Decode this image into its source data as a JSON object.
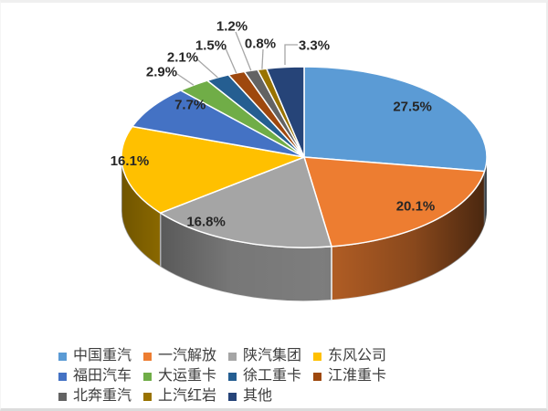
{
  "page": {
    "background": "#ffffff"
  },
  "chart_data": {
    "type": "pie",
    "style": "3d",
    "start_angle_deg": 0,
    "direction": "clockwise",
    "legend_position": "bottom",
    "label_color": "#262626",
    "leader_line_color": "#A6A6A6",
    "slices": [
      {
        "label": "中国重汽",
        "value": 27.5,
        "display": "27.5%",
        "color": "#5B9BD5",
        "label_placement": "inside"
      },
      {
        "label": "一汽解放",
        "value": 20.1,
        "display": "20.1%",
        "color": "#ED7D31",
        "label_placement": "inside"
      },
      {
        "label": "陕汽集团",
        "value": 16.8,
        "display": "16.8%",
        "color": "#A5A5A5",
        "label_placement": "inside"
      },
      {
        "label": "东风公司",
        "value": 16.1,
        "display": "16.1%",
        "color": "#FFC000",
        "label_placement": "inside"
      },
      {
        "label": "福田汽车",
        "value": 7.7,
        "display": "7.7%",
        "color": "#4472C4",
        "label_placement": "inside"
      },
      {
        "label": "大运重卡",
        "value": 2.9,
        "display": "2.9%",
        "color": "#70AD47",
        "label_placement": "outside"
      },
      {
        "label": "徐工重卡",
        "value": 2.1,
        "display": "2.1%",
        "color": "#255E91",
        "label_placement": "outside"
      },
      {
        "label": "江淮重卡",
        "value": 1.5,
        "display": "1.5%",
        "color": "#9E480E",
        "label_placement": "outside"
      },
      {
        "label": "北奔重汽",
        "value": 1.2,
        "display": "1.2%",
        "color": "#636363",
        "label_placement": "outside"
      },
      {
        "label": "上汽红岩",
        "value": 0.8,
        "display": "0.8%",
        "color": "#997300",
        "label_placement": "outside"
      },
      {
        "label": "其他",
        "value": 3.3,
        "display": "3.3%",
        "color": "#264478",
        "label_placement": "outside"
      }
    ]
  }
}
